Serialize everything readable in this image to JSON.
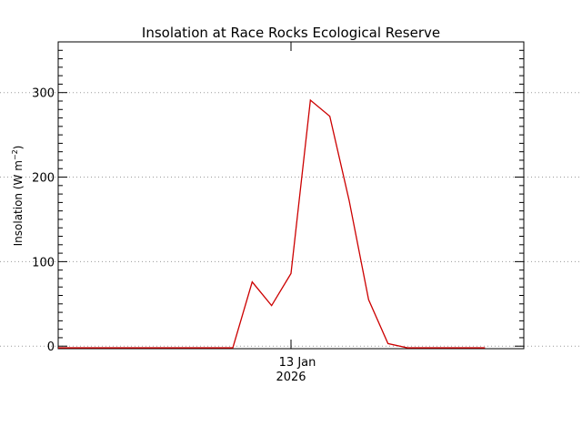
{
  "chart_data": {
    "type": "line",
    "title": "Insolation at Race Rocks Ecological Reserve",
    "ylabel_main": "Insolation (W m",
    "ylabel_exp": "−2",
    "ylabel_close": ")",
    "xtick": {
      "line1": "13 Jan",
      "line2": "2026"
    },
    "yticks": [
      0,
      100,
      200,
      300
    ],
    "ylim": [
      -3,
      360
    ],
    "x_hours": [
      0,
      24
    ],
    "grid": "dotted horizontal at major y ticks",
    "series": [
      {
        "color": "#cc0000",
        "x": [
          0,
          1,
          2,
          3,
          4,
          5,
          6,
          7,
          8,
          9,
          10,
          11,
          12,
          13,
          14,
          15,
          16,
          17,
          18,
          19,
          20,
          21,
          22
        ],
        "values": [
          -2,
          -2,
          -2,
          -2,
          -2,
          -2,
          -2,
          -2,
          -2,
          -2,
          76,
          48,
          86,
          291,
          272,
          172,
          55,
          3,
          -2,
          -2,
          -2,
          -2,
          -2
        ]
      }
    ]
  }
}
